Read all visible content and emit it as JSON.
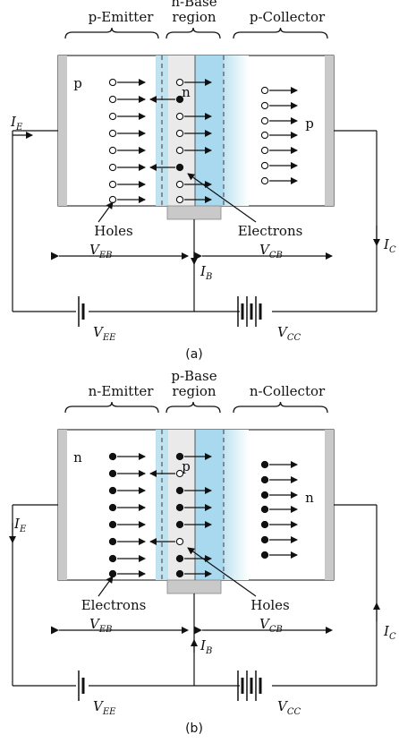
{
  "colors": {
    "bar": "#c9c9c9",
    "depletion": "#bfe3f1",
    "base_region": "#a9d9ee",
    "collector_fade": "#e7f4fa",
    "wire": "#111111"
  },
  "icons": [
    "hole-circle-icon",
    "electron-dot-icon",
    "arrow-icon",
    "battery-icon"
  ],
  "diagrams": [
    {
      "id": "a",
      "caption": "(a)",
      "regions": {
        "emitter": "p-Emitter",
        "base_line1": "n-Base",
        "base_line2": "region",
        "collector": "p-Collector"
      },
      "layers": {
        "left": "p",
        "middle": "n",
        "right": "p"
      },
      "carriers": {
        "left": "Holes",
        "right": "Electrons"
      },
      "labels": {
        "ie_main": "I",
        "ie_sub": "E",
        "ic_main": "I",
        "ic_sub": "C",
        "ib_main": "I",
        "ib_sub": "B",
        "veb_main": "V",
        "veb_sub": "EB",
        "vcb_main": "V",
        "vcb_sub": "CB",
        "vee_main": "V",
        "vee_sub": "EE",
        "vcc_main": "V",
        "vcc_sub": "CC"
      }
    },
    {
      "id": "b",
      "caption": "(b)",
      "regions": {
        "emitter": "n-Emitter",
        "base_line1": "p-Base",
        "base_line2": "region",
        "collector": "n-Collector"
      },
      "layers": {
        "left": "n",
        "middle": "p",
        "right": "n"
      },
      "carriers": {
        "left": "Electrons",
        "right": "Holes"
      },
      "labels": {
        "ie_main": "I",
        "ie_sub": "E",
        "ic_main": "I",
        "ic_sub": "C",
        "ib_main": "I",
        "ib_sub": "B",
        "veb_main": "V",
        "veb_sub": "EB",
        "vcb_main": "V",
        "vcb_sub": "CB",
        "vee_main": "V",
        "vee_sub": "EE",
        "vcc_main": "V",
        "vcc_sub": "CC"
      }
    }
  ]
}
